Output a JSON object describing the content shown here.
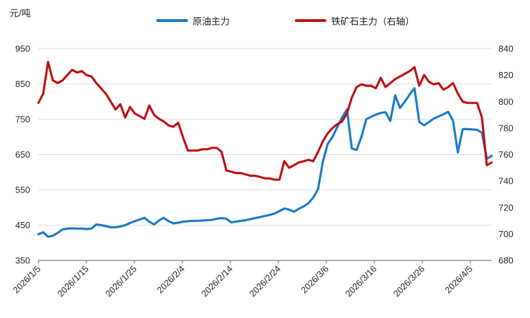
{
  "unit_label": "元/吨",
  "legend": {
    "items": [
      {
        "label": "原油主力",
        "color": "#1b7ac6"
      },
      {
        "label": "铁矿石主力（右轴）",
        "color": "#c01010"
      }
    ]
  },
  "chart_data": {
    "type": "line",
    "title": "",
    "xlabel": "",
    "ylabel_left": "元/吨",
    "grid": "horizontal",
    "legend_position": "top-center",
    "grid_color": "#d9d9d9",
    "axis_color": "#7f7f7f",
    "text_color": "#262626",
    "x_tick_labels": [
      "2026/1/5",
      "2026/1/15",
      "2026/1/25",
      "2026/2/4",
      "2026/2/14",
      "2026/2/24",
      "2026/3/6",
      "2026/3/16",
      "2026/3/26",
      "2026/4/5"
    ],
    "left_axis": {
      "min": 350,
      "max": 950,
      "ticks": [
        950,
        850,
        750,
        650,
        550,
        450,
        350
      ]
    },
    "right_axis": {
      "min": 680,
      "max": 840,
      "ticks": [
        840,
        820,
        800,
        780,
        760,
        740,
        720,
        700,
        680
      ]
    },
    "series": [
      {
        "name": "原油主力",
        "axis": "left",
        "color": "#1b7ac6",
        "values": [
          424,
          430,
          417,
          420,
          428,
          438,
          440,
          441,
          440,
          440,
          439,
          440,
          452,
          450,
          447,
          444,
          444,
          446,
          450,
          456,
          461,
          466,
          471,
          460,
          452,
          463,
          471,
          461,
          455,
          457,
          460,
          461,
          462,
          462,
          463,
          464,
          465,
          468,
          470,
          468,
          458,
          460,
          462,
          464,
          467,
          470,
          473,
          476,
          479,
          483,
          490,
          497,
          494,
          488,
          496,
          503,
          512,
          528,
          552,
          630,
          680,
          700,
          728,
          755,
          778,
          667,
          663,
          700,
          750,
          757,
          763,
          768,
          770,
          745,
          818,
          782,
          800,
          820,
          838,
          742,
          733,
          742,
          752,
          758,
          764,
          771,
          746,
          656,
          722,
          722,
          721,
          720,
          712,
          638,
          646
        ]
      },
      {
        "name": "铁矿石主力（右轴）",
        "axis": "right",
        "color": "#c01010",
        "values": [
          799,
          806,
          830,
          816,
          814,
          816,
          820,
          824,
          822,
          823,
          820,
          819,
          814,
          810,
          806,
          800,
          794,
          798,
          788,
          796,
          791,
          789,
          787,
          797,
          790,
          787,
          785,
          782,
          781,
          784,
          773,
          763,
          763,
          763,
          764,
          764,
          765,
          765,
          762,
          748,
          747,
          746,
          746,
          745,
          744,
          744,
          743,
          742,
          742,
          741,
          741,
          755,
          750,
          752,
          754,
          755,
          756,
          755,
          762,
          770,
          776,
          780,
          783,
          785,
          791,
          803,
          811,
          813,
          812,
          812,
          810,
          818,
          811,
          814,
          817,
          819,
          821,
          823,
          826,
          812,
          820,
          815,
          813,
          814,
          809,
          811,
          814,
          806,
          800,
          799,
          799,
          799,
          788,
          752,
          754
        ]
      }
    ]
  }
}
